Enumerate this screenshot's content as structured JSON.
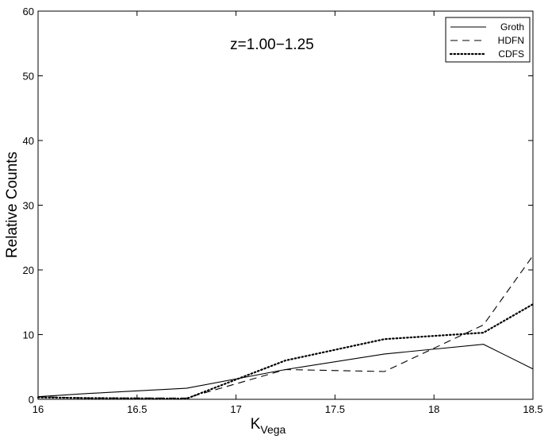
{
  "chart_data": {
    "type": "line",
    "xlabel_main": "K",
    "xlabel_sub": "Vega",
    "ylabel": "Relative Counts",
    "annotation": "z=1.00−1.25",
    "xlim": [
      16,
      18.5
    ],
    "ylim": [
      0,
      60
    ],
    "xticks": [
      16,
      16.5,
      17,
      17.5,
      18,
      18.5
    ],
    "xtick_labels": [
      "16",
      "16.5",
      "17",
      "17.5",
      "18",
      "18.5"
    ],
    "yticks": [
      0,
      10,
      20,
      30,
      40,
      50,
      60
    ],
    "ytick_labels": [
      "0",
      "10",
      "20",
      "30",
      "40",
      "50",
      "60"
    ],
    "grid": false,
    "legend_position": "top-right",
    "series": [
      {
        "name": "Groth",
        "style": "solid",
        "color": "#000000",
        "x": [
          16,
          16.25,
          16.75,
          17.25,
          17.75,
          18.25,
          18.5
        ],
        "y": [
          0.4,
          0.9,
          1.7,
          4.6,
          7.0,
          8.5,
          4.7
        ]
      },
      {
        "name": "HDFN",
        "style": "dashed",
        "color": "#000000",
        "x": [
          16,
          16.25,
          16.75,
          17.25,
          17.75,
          18.25,
          18.5
        ],
        "y": [
          0.4,
          0.2,
          0.2,
          4.6,
          4.3,
          11.5,
          22.2
        ]
      },
      {
        "name": "CDFS",
        "style": "dotted",
        "color": "#000000",
        "x": [
          16,
          16.25,
          16.75,
          17.25,
          17.75,
          18.25,
          18.5
        ],
        "y": [
          0.3,
          0.2,
          0.1,
          6.0,
          9.3,
          10.3,
          14.7
        ]
      }
    ]
  }
}
